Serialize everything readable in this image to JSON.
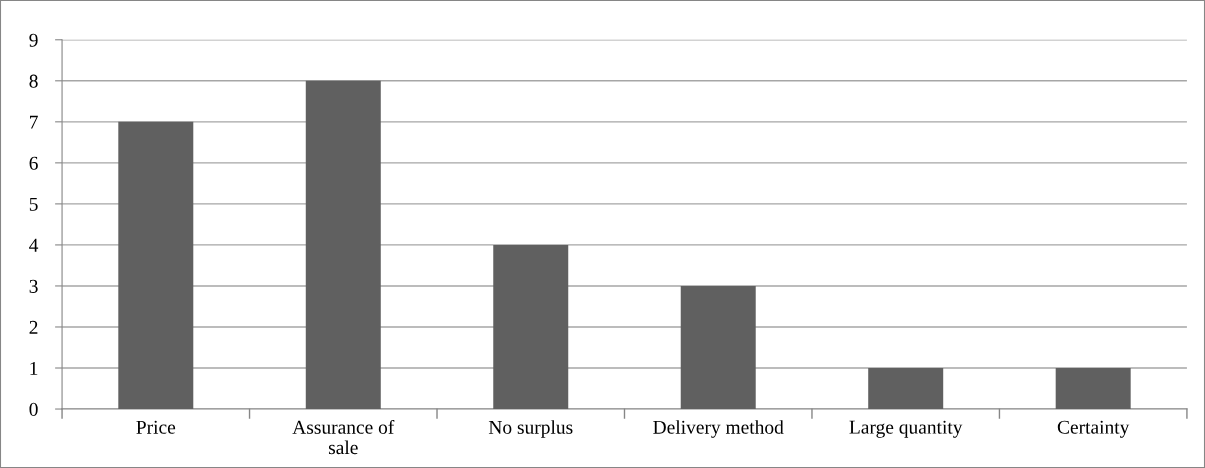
{
  "chart_data": {
    "type": "bar",
    "categories": [
      "Price",
      "Assurance of sale",
      "No surplus",
      "Delivery method",
      "Large quantity",
      "Certainty"
    ],
    "values": [
      7,
      8,
      4,
      3,
      1,
      1
    ],
    "color": "#606060",
    "ylim": [
      0,
      9
    ],
    "yticks": [
      0,
      1,
      2,
      3,
      4,
      5,
      6,
      7,
      8,
      9
    ],
    "grid": "y",
    "legend": false
  }
}
